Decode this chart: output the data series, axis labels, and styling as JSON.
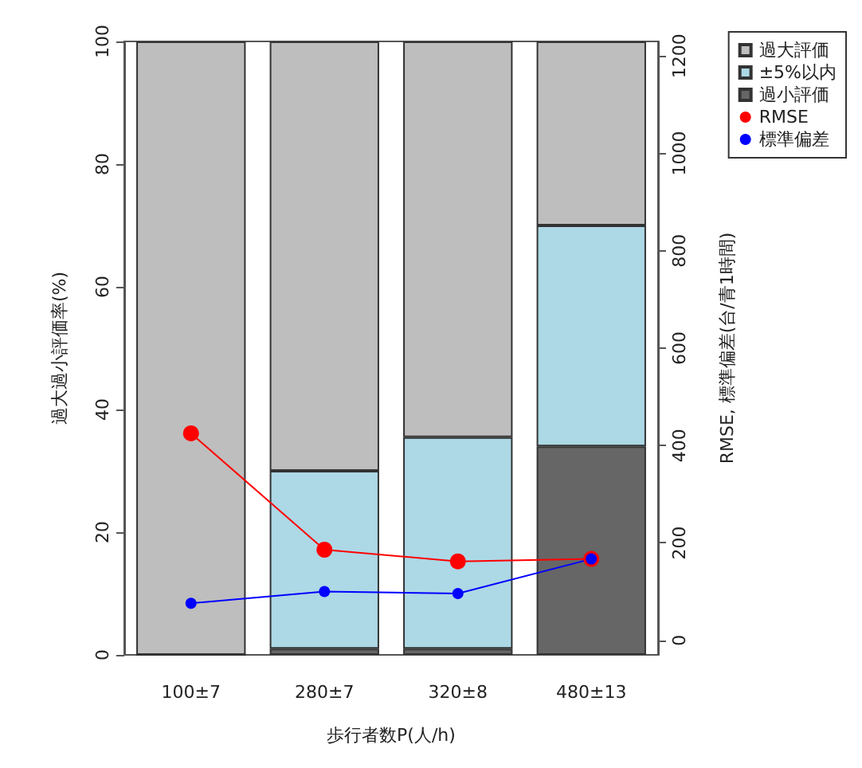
{
  "chart_data": {
    "type": "bar",
    "stacked": true,
    "xlabel": "歩行者数P(人/h)",
    "ylabel": "過大過小評価率(%)",
    "y2label": "RMSE, 標準偏差(台/青1時間)",
    "categories": [
      "100±7",
      "280±7",
      "320±8",
      "480±13"
    ],
    "series": [
      {
        "name": "過小評価",
        "color": "#666666",
        "values": [
          0,
          1,
          1,
          34
        ]
      },
      {
        "name": "±5%以内",
        "color": "#add8e6",
        "values": [
          0,
          29,
          34.5,
          36
        ]
      },
      {
        "name": "過大評価",
        "color": "#bebebe",
        "values": [
          100,
          70,
          64.5,
          30
        ]
      },
      {
        "name": "RMSE",
        "type": "line",
        "axis": "y2",
        "color": "#ff0000",
        "values": [
          425,
          186,
          162,
          167
        ]
      },
      {
        "name": "標準偏差",
        "type": "line",
        "axis": "y2",
        "color": "#0000ff",
        "values": [
          76,
          100,
          96,
          167
        ]
      }
    ],
    "ylim": [
      0,
      100
    ],
    "yticks": [
      0,
      20,
      40,
      60,
      80,
      100
    ],
    "y2lim": [
      -30,
      1230
    ],
    "y2ticks": [
      0,
      200,
      400,
      600,
      800,
      1000,
      1200
    ],
    "marker": "circle",
    "line_style": "solid",
    "grid": false,
    "legend": "top right"
  }
}
